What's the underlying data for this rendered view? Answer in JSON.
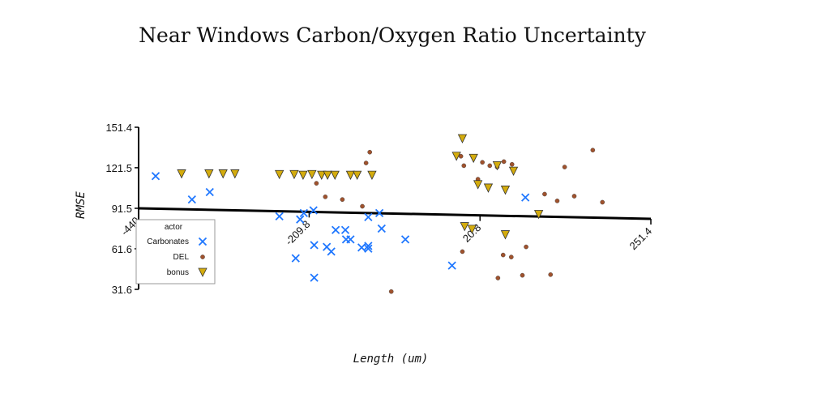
{
  "chart_data": {
    "type": "scatter",
    "title": "Near Windows Carbon/Oxygen Ratio Uncertainty",
    "xlabel": "Length (um)",
    "ylabel": "RMSE",
    "x_ticks": [
      "-440",
      "-209.8",
      "20.8",
      "251.4"
    ],
    "y_ticks": [
      "151.4",
      "121.5",
      "91.5",
      "61.6",
      "31.6"
    ],
    "xlim": [
      -440,
      251.4
    ],
    "ylim": [
      31.6,
      151.4
    ],
    "grid": false,
    "legend": {
      "title": "actor",
      "placement": "lower-left",
      "entries": [
        "Carbonates",
        "DEL",
        "bonus"
      ]
    },
    "trend_line": {
      "x": [
        -440,
        251.4
      ],
      "y": [
        92.3,
        84.5
      ]
    },
    "series": [
      {
        "name": "Carbonates",
        "marker": "x",
        "color": "#1f77ff",
        "points": [
          [
            -417,
            115.3
          ],
          [
            -368,
            98.0
          ],
          [
            -344,
            103.5
          ],
          [
            -250,
            85.6
          ],
          [
            -228,
            54.6
          ],
          [
            -222,
            83.3
          ],
          [
            -217,
            88.0
          ],
          [
            -204,
            90.0
          ],
          [
            -203,
            64.3
          ],
          [
            -203,
            40.2
          ],
          [
            -186,
            63.0
          ],
          [
            -180,
            59.5
          ],
          [
            -174,
            75.5
          ],
          [
            -161,
            75.5
          ],
          [
            -160,
            68.5
          ],
          [
            -154,
            68.5
          ],
          [
            -139,
            62.5
          ],
          [
            -130,
            63.7
          ],
          [
            -130,
            61.7
          ],
          [
            -130,
            85.0
          ],
          [
            -115,
            88.0
          ],
          [
            -112,
            76.5
          ],
          [
            -80,
            68.5
          ],
          [
            -17,
            49.2
          ],
          [
            82,
            99.5
          ]
        ]
      },
      {
        "name": "DEL",
        "marker": "o",
        "color": "#a0522d",
        "points": [
          [
            -200,
            110.0
          ],
          [
            -188,
            100.0
          ],
          [
            -165,
            98.0
          ],
          [
            -138,
            93.0
          ],
          [
            -133,
            125.0
          ],
          [
            -128,
            133.0
          ],
          [
            -99,
            30.0
          ],
          [
            -3,
            59.5
          ],
          [
            -1,
            123.0
          ],
          [
            24,
            125.5
          ],
          [
            34,
            123.0
          ],
          [
            44,
            122.0
          ],
          [
            53,
            126.0
          ],
          [
            64,
            124.0
          ],
          [
            78,
            42.0
          ],
          [
            83,
            63.0
          ],
          [
            108,
            102.0
          ],
          [
            125,
            97.0
          ],
          [
            135,
            122.0
          ],
          [
            148,
            100.5
          ],
          [
            173,
            134.5
          ],
          [
            186,
            96.0
          ],
          [
            -5,
            130.0
          ],
          [
            52,
            57.0
          ],
          [
            63,
            55.5
          ],
          [
            45,
            40.0
          ],
          [
            116,
            42.5
          ],
          [
            18,
            113.0
          ]
        ]
      },
      {
        "name": "bonus",
        "marker": "triangle-down",
        "color": "#d4ac0d",
        "points": [
          [
            -382,
            117.0
          ],
          [
            -345,
            117.0
          ],
          [
            -326,
            117.0
          ],
          [
            -310,
            117.0
          ],
          [
            -250,
            116.5
          ],
          [
            -230,
            116.5
          ],
          [
            -218,
            116.0
          ],
          [
            -206,
            116.5
          ],
          [
            -193,
            116.0
          ],
          [
            -185,
            116.0
          ],
          [
            -175,
            116.0
          ],
          [
            -154,
            116.0
          ],
          [
            -145,
            116.0
          ],
          [
            -125,
            116.0
          ],
          [
            -11,
            130.0
          ],
          [
            -3,
            143.0
          ],
          [
            12,
            128.5
          ],
          [
            18,
            109.0
          ],
          [
            32,
            106.5
          ],
          [
            44,
            123.0
          ],
          [
            55,
            105.0
          ],
          [
            66,
            119.0
          ],
          [
            100,
            87.0
          ],
          [
            0,
            78.0
          ],
          [
            10,
            76.0
          ],
          [
            55,
            72.0
          ]
        ]
      }
    ]
  }
}
